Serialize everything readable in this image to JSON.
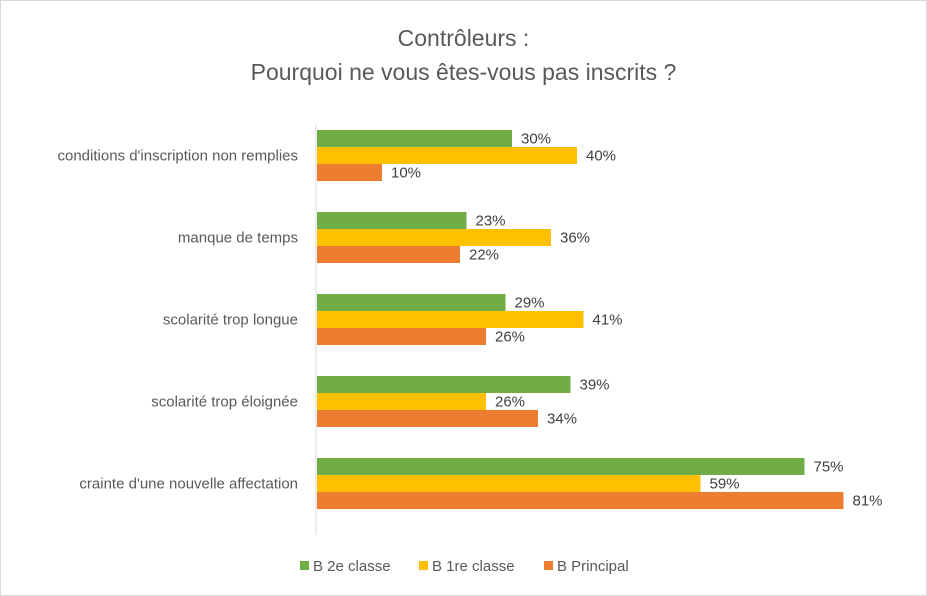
{
  "chart_data": {
    "type": "bar",
    "orientation": "horizontal",
    "title_lines": [
      "Contrôleurs :",
      "Pourquoi ne vous êtes-vous pas inscrits ?"
    ],
    "categories": [
      "conditions d'inscription non remplies",
      "manque de temps",
      "scolarité trop longue",
      "scolarité trop éloignée",
      "crainte d'une nouvelle affectation"
    ],
    "series": [
      {
        "name": "B 2e classe",
        "color": "#70ad47",
        "values": [
          30,
          23,
          29,
          39,
          75
        ],
        "labels": [
          "30%",
          "23%",
          "29%",
          "39%",
          "75%"
        ]
      },
      {
        "name": "B 1re classe",
        "color": "#ffc000",
        "values": [
          40,
          36,
          41,
          26,
          59
        ],
        "labels": [
          "40%",
          "36%",
          "41%",
          "26%",
          "59%"
        ]
      },
      {
        "name": "B Principal",
        "color": "#ed7d31",
        "values": [
          10,
          22,
          26,
          34,
          81
        ],
        "labels": [
          "10%",
          "22%",
          "26%",
          "34%",
          "81%"
        ]
      }
    ],
    "value_unit": "%",
    "xlim": [
      0,
      81
    ],
    "grid": false,
    "legend_position": "bottom"
  }
}
